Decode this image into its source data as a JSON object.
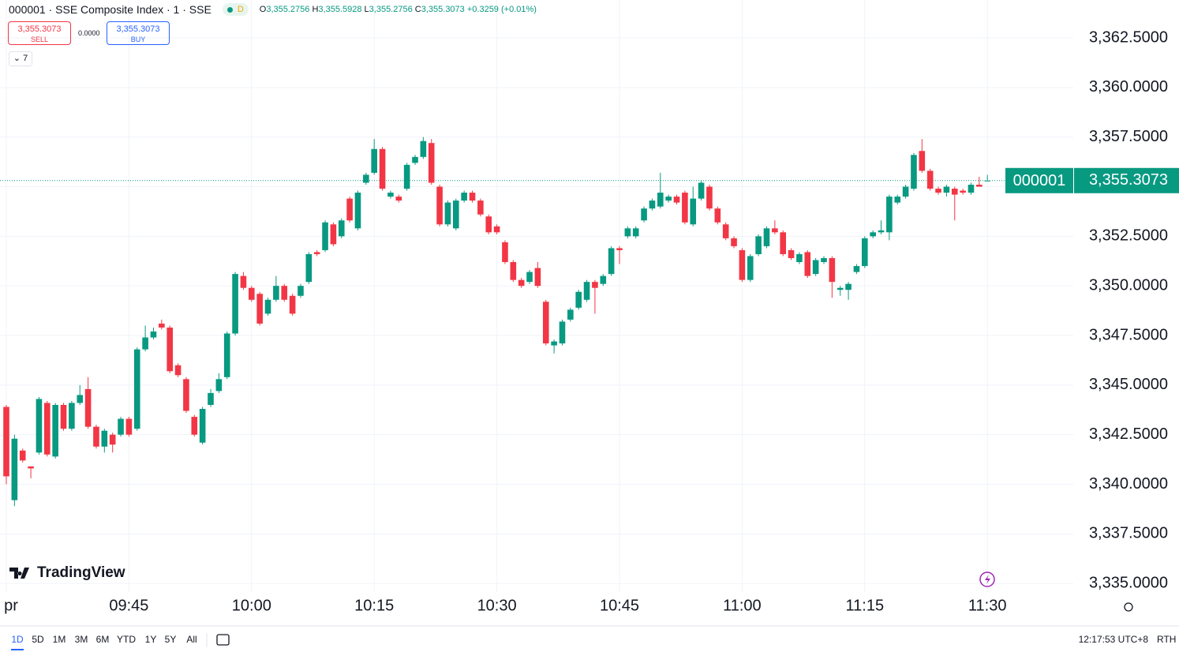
{
  "header": {
    "title": "000001 · SSE Composite Index · 1 · SSE",
    "badge": "D",
    "ohlc": [
      {
        "key": "O",
        "value": "3,355.2756"
      },
      {
        "key": "H",
        "value": "3,355.5928"
      },
      {
        "key": "L",
        "value": "3,355.2756"
      },
      {
        "key": "C",
        "value": "3,355.3073"
      }
    ],
    "change": "+0.3259 (+0.01%)"
  },
  "trade": {
    "sell_price": "3,355.3073",
    "sell_label": "SELL",
    "spread": "0.0000",
    "buy_price": "3,355.3073",
    "buy_label": "BUY",
    "indicators": "7"
  },
  "chart_data": {
    "type": "candlestick",
    "up_color": "#089981",
    "down_color": "#f23645",
    "grid": true,
    "ylim": [
      3334.57,
      3364.41
    ],
    "yticks": [
      {
        "value": 3335,
        "label": "3,335.0000"
      },
      {
        "value": 3337.5,
        "label": "3,337.5000"
      },
      {
        "value": 3340,
        "label": "3,340.0000"
      },
      {
        "value": 3342.5,
        "label": "3,342.5000"
      },
      {
        "value": 3345,
        "label": "3,345.0000"
      },
      {
        "value": 3347.5,
        "label": "3,347.5000"
      },
      {
        "value": 3350,
        "label": "3,350.0000"
      },
      {
        "value": 3352.5,
        "label": "3,352.5000"
      },
      {
        "value": 3355,
        "label": "3,355.0000"
      },
      {
        "value": 3357.5,
        "label": "3,357.5000"
      },
      {
        "value": 3360,
        "label": "3,360.0000"
      },
      {
        "value": 3362.5,
        "label": "3,362.5000"
      }
    ],
    "categories": [
      "pr",
      null,
      null,
      null,
      null,
      null,
      null,
      null,
      null,
      null,
      null,
      null,
      null,
      null,
      null,
      "09:45",
      null,
      null,
      null,
      null,
      null,
      null,
      null,
      null,
      null,
      null,
      null,
      null,
      null,
      null,
      "10:00",
      null,
      null,
      null,
      null,
      null,
      null,
      null,
      null,
      null,
      null,
      null,
      null,
      null,
      null,
      "10:15",
      null,
      null,
      null,
      null,
      null,
      null,
      null,
      null,
      null,
      null,
      null,
      null,
      null,
      null,
      "10:30",
      null,
      null,
      null,
      null,
      null,
      null,
      null,
      null,
      null,
      null,
      null,
      null,
      null,
      null,
      "10:45",
      null,
      null,
      null,
      null,
      null,
      null,
      null,
      null,
      null,
      null,
      null,
      null,
      null,
      null,
      "11:00",
      null,
      null,
      null,
      null,
      null,
      null,
      null,
      null,
      null,
      null,
      null,
      null,
      null,
      null,
      "11:15",
      null,
      null,
      null,
      null,
      null,
      null,
      null,
      null,
      null,
      null,
      null,
      null,
      null,
      null,
      "11:30"
    ],
    "open": [
      3343.9,
      3339.2,
      3341.7,
      3340.9,
      3341.6,
      3344.1,
      3341.4,
      3344.0,
      3342.8,
      3344.1,
      3344.8,
      3342.9,
      3341.9,
      3342.5,
      3342.5,
      3343.3,
      3342.8,
      3346.8,
      3347.4,
      3348.1,
      3347.9,
      3346.0,
      3345.3,
      3343.4,
      3342.1,
      3344.0,
      3344.7,
      3345.4,
      3347.6,
      3350.5,
      3349.9,
      3349.6,
      3348.6,
      3349.3,
      3350.0,
      3349.5,
      3349.5,
      3350.2,
      3351.7,
      3351.8,
      3353.1,
      3352.5,
      3354.4,
      3352.9,
      3355.2,
      3355.7,
      3356.9,
      3354.5,
      3354.5,
      3354.9,
      3356.2,
      3356.5,
      3357.2,
      3355.0,
      3353.1,
      3352.9,
      3354.3,
      3354.7,
      3354.3,
      3353.5,
      3353.0,
      3352.2,
      3351.2,
      3350.3,
      3350.2,
      3350.9,
      3349.2,
      3347.0,
      3347.1,
      3348.3,
      3348.9,
      3349.3,
      3350.2,
      3350.1,
      3350.6,
      3351.9,
      3352.5,
      3352.5,
      3353.3,
      3353.9,
      3354.0,
      3354.3,
      3354.5,
      3354.7,
      3353.1,
      3354.4,
      3355.0,
      3353.9,
      3353.1,
      3352.4,
      3351.8,
      3350.3,
      3351.6,
      3352.0,
      3352.9,
      3352.7,
      3351.8,
      3351.2,
      3351.7,
      3350.6,
      3351.2,
      3351.4,
      3349.8,
      3349.8,
      3350.7,
      3351.0,
      3352.5,
      3352.7,
      3352.7,
      3354.2,
      3354.5,
      3354.9,
      3356.8,
      3355.8,
      3354.9,
      3354.7,
      3354.9,
      3354.8,
      3354.7,
      3355.1,
      3355.2756
    ],
    "high": [
      3344.0,
      3342.5,
      3341.8,
      3340.9,
      3344.4,
      3344.2,
      3344.1,
      3344.1,
      3344.2,
      3345.0,
      3345.4,
      3343.0,
      3342.8,
      3342.6,
      3343.4,
      3343.4,
      3346.9,
      3348.0,
      3347.9,
      3348.3,
      3348.0,
      3346.1,
      3345.4,
      3343.5,
      3343.9,
      3344.8,
      3345.6,
      3347.7,
      3350.7,
      3350.7,
      3350.0,
      3349.7,
      3349.4,
      3350.5,
      3350.1,
      3349.6,
      3350.1,
      3351.7,
      3351.8,
      3353.3,
      3353.2,
      3353.4,
      3354.5,
      3354.8,
      3355.7,
      3357.4,
      3357.0,
      3354.8,
      3354.6,
      3356.2,
      3356.6,
      3357.5,
      3357.4,
      3355.1,
      3354.3,
      3354.4,
      3354.8,
      3354.8,
      3354.4,
      3353.6,
      3353.1,
      3352.3,
      3351.3,
      3350.4,
      3350.8,
      3351.2,
      3349.3,
      3347.3,
      3348.3,
      3348.9,
      3349.8,
      3350.3,
      3350.3,
      3350.6,
      3352.0,
      3352.0,
      3353.0,
      3353.0,
      3354.0,
      3354.4,
      3355.7,
      3354.6,
      3354.6,
      3354.8,
      3355.0,
      3355.3,
      3355.1,
      3354.0,
      3353.2,
      3352.5,
      3351.9,
      3351.6,
      3352.6,
      3353.0,
      3353.3,
      3352.8,
      3351.9,
      3351.7,
      3351.8,
      3351.4,
      3351.5,
      3351.5,
      3350.0,
      3350.2,
      3351.1,
      3352.5,
      3352.8,
      3353.3,
      3354.6,
      3354.6,
      3355.1,
      3356.7,
      3357.4,
      3355.9,
      3355.0,
      3355.1,
      3355.0,
      3354.9,
      3355.2,
      3355.5,
      3355.5928
    ],
    "low": [
      3340.0,
      3338.9,
      3341.1,
      3340.3,
      3341.5,
      3341.4,
      3341.3,
      3342.7,
      3342.7,
      3344.0,
      3342.8,
      3341.8,
      3341.6,
      3341.6,
      3342.4,
      3342.4,
      3342.7,
      3346.7,
      3347.3,
      3347.8,
      3345.6,
      3345.4,
      3343.6,
      3342.4,
      3342.0,
      3343.9,
      3344.6,
      3345.3,
      3347.5,
      3349.8,
      3349.2,
      3348.0,
      3348.5,
      3349.2,
      3349.2,
      3348.5,
      3349.4,
      3350.1,
      3351.5,
      3351.7,
      3352.0,
      3352.4,
      3353.2,
      3352.8,
      3355.1,
      3355.6,
      3354.8,
      3354.4,
      3354.2,
      3354.8,
      3356.1,
      3356.4,
      3355.1,
      3353.0,
      3353.0,
      3352.8,
      3354.2,
      3354.2,
      3353.5,
      3352.6,
      3352.6,
      3351.1,
      3350.2,
      3349.9,
      3350.1,
      3349.9,
      3347.0,
      3346.6,
      3347.0,
      3348.2,
      3348.8,
      3349.2,
      3348.6,
      3350.0,
      3350.5,
      3351.1,
      3352.4,
      3352.4,
      3353.2,
      3353.8,
      3353.9,
      3354.2,
      3354.1,
      3353.1,
      3353.0,
      3354.3,
      3353.8,
      3353.1,
      3352.3,
      3351.9,
      3350.2,
      3350.2,
      3351.5,
      3351.9,
      3352.6,
      3351.5,
      3351.3,
      3351.1,
      3350.4,
      3350.5,
      3351.1,
      3349.4,
      3349.5,
      3349.3,
      3350.6,
      3350.9,
      3352.4,
      3352.6,
      3352.3,
      3354.1,
      3354.4,
      3354.8,
      3355.7,
      3354.8,
      3354.6,
      3354.5,
      3353.3,
      3354.6,
      3354.6,
      3355.0,
      3355.2756
    ],
    "close": [
      3340.4,
      3342.3,
      3341.2,
      3340.8,
      3344.3,
      3341.5,
      3344.0,
      3342.8,
      3344.1,
      3344.5,
      3342.9,
      3341.9,
      3342.7,
      3342.0,
      3343.3,
      3342.5,
      3346.8,
      3347.4,
      3347.7,
      3347.9,
      3345.7,
      3345.5,
      3343.7,
      3342.5,
      3343.8,
      3344.6,
      3345.3,
      3347.6,
      3350.6,
      3349.9,
      3349.3,
      3348.1,
      3349.3,
      3350.0,
      3349.3,
      3348.6,
      3350.0,
      3351.6,
      3351.6,
      3353.2,
      3352.1,
      3353.3,
      3353.3,
      3354.7,
      3355.6,
      3356.9,
      3354.9,
      3354.7,
      3354.3,
      3356.1,
      3356.5,
      3357.3,
      3355.2,
      3353.1,
      3354.2,
      3354.3,
      3354.7,
      3354.3,
      3353.6,
      3352.7,
      3352.7,
      3351.2,
      3350.3,
      3350.0,
      3350.7,
      3350.0,
      3347.1,
      3347.2,
      3348.2,
      3348.8,
      3349.7,
      3350.2,
      3349.9,
      3350.5,
      3351.9,
      3351.8,
      3352.9,
      3352.9,
      3353.9,
      3354.3,
      3354.7,
      3354.5,
      3354.2,
      3353.2,
      3354.4,
      3355.2,
      3353.9,
      3353.2,
      3352.4,
      3352.0,
      3350.3,
      3351.5,
      3352.5,
      3352.9,
      3352.7,
      3351.6,
      3351.4,
      3351.6,
      3350.5,
      3351.3,
      3351.4,
      3350.2,
      3349.9,
      3350.1,
      3351.0,
      3352.4,
      3352.7,
      3352.8,
      3354.5,
      3354.5,
      3355.0,
      3356.6,
      3355.8,
      3354.9,
      3354.7,
      3355.0,
      3354.6,
      3354.7,
      3355.1,
      3355.0,
      3355.3073
    ],
    "last_symbol": "000001",
    "last_price": {
      "value": 3355.3073,
      "label": "3,355.3073"
    }
  },
  "watermark": "TradingView",
  "footer": {
    "ranges": [
      "1D",
      "5D",
      "1M",
      "3M",
      "6M",
      "YTD",
      "1Y",
      "5Y",
      "All"
    ],
    "clock": "12:17:53 UTC+8",
    "session": "RTH"
  }
}
